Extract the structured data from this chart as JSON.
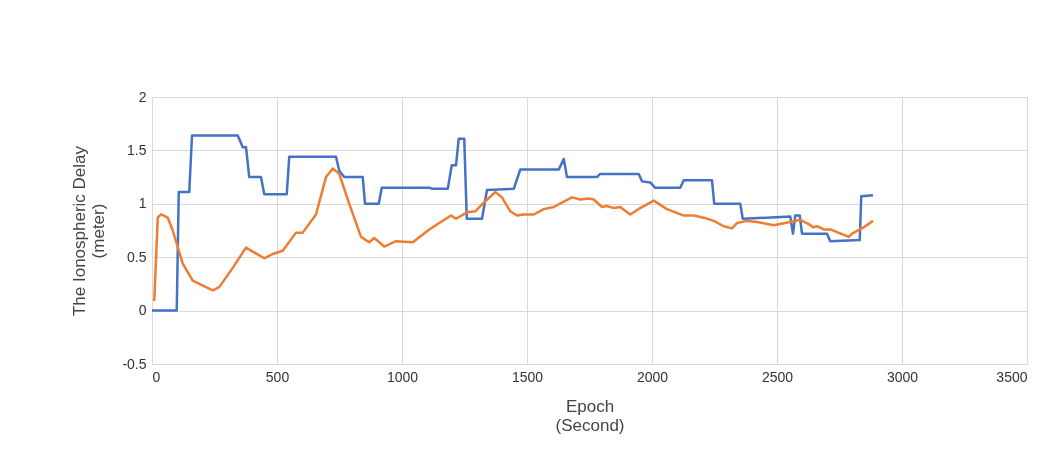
{
  "chart_data": {
    "type": "line",
    "xlabel": "Epoch\n(Second)",
    "ylabel": "The Ionospheric Delay\n(meter)",
    "xlim": [
      0,
      3500
    ],
    "xticks": [
      0,
      500,
      1000,
      1500,
      2000,
      2500,
      3000,
      3500
    ],
    "ylim": [
      -0.5,
      2
    ],
    "yticks": [
      -0.5,
      0,
      0.5,
      1,
      1.5,
      2
    ],
    "grid": true,
    "marker": "none",
    "line_style": "solid",
    "series": [
      {
        "color": "#4472c4",
        "x": [
          0,
          99,
          107,
          149,
          160,
          343,
          363,
          376,
          389,
          436,
          449,
          539,
          549,
          736,
          749,
          769,
          843,
          852,
          907,
          919,
          1109,
          1123,
          1183,
          1199,
          1216,
          1227,
          1249,
          1259,
          1320,
          1340,
          1447,
          1473,
          1627,
          1647,
          1660,
          1780,
          1793,
          1947,
          1960,
          1993,
          2013,
          2113,
          2127,
          2240,
          2249,
          2353,
          2363,
          2553,
          2564,
          2573,
          2591,
          2600,
          2700,
          2713,
          2831,
          2837,
          2884
        ],
        "values": [
          0,
          0,
          1.11,
          1.11,
          1.64,
          1.64,
          1.53,
          1.53,
          1.25,
          1.25,
          1.09,
          1.09,
          1.44,
          1.44,
          1.31,
          1.25,
          1.25,
          1.0,
          1.0,
          1.15,
          1.15,
          1.14,
          1.14,
          1.36,
          1.36,
          1.61,
          1.61,
          0.86,
          0.86,
          1.13,
          1.14,
          1.32,
          1.32,
          1.42,
          1.25,
          1.25,
          1.28,
          1.28,
          1.21,
          1.2,
          1.15,
          1.15,
          1.22,
          1.22,
          1.0,
          1.0,
          0.86,
          0.88,
          0.72,
          0.89,
          0.89,
          0.72,
          0.72,
          0.65,
          0.66,
          1.07,
          1.08
        ]
      },
      {
        "color": "#ed7d31",
        "x": [
          9,
          23,
          36,
          63,
          83,
          123,
          163,
          216,
          243,
          269,
          323,
          376,
          449,
          483,
          523,
          576,
          603,
          656,
          696,
          723,
          749,
          789,
          836,
          869,
          889,
          929,
          976,
          1043,
          1109,
          1149,
          1196,
          1216,
          1260,
          1293,
          1327,
          1373,
          1400,
          1433,
          1460,
          1487,
          1527,
          1567,
          1607,
          1647,
          1680,
          1713,
          1747,
          1767,
          1800,
          1820,
          1847,
          1873,
          1913,
          1953,
          2007,
          2060,
          2127,
          2167,
          2207,
          2247,
          2287,
          2320,
          2340,
          2380,
          2420,
          2487,
          2553,
          2593,
          2627,
          2644,
          2660,
          2687,
          2713,
          2787,
          2800,
          2847,
          2884
        ],
        "values": [
          0.09,
          0.87,
          0.9,
          0.87,
          0.75,
          0.44,
          0.28,
          0.22,
          0.19,
          0.22,
          0.4,
          0.59,
          0.49,
          0.53,
          0.56,
          0.73,
          0.73,
          0.9,
          1.25,
          1.33,
          1.28,
          1.0,
          0.69,
          0.64,
          0.68,
          0.6,
          0.65,
          0.64,
          0.76,
          0.82,
          0.89,
          0.86,
          0.92,
          0.93,
          1.01,
          1.11,
          1.06,
          0.93,
          0.89,
          0.9,
          0.9,
          0.95,
          0.97,
          1.02,
          1.06,
          1.04,
          1.05,
          1.04,
          0.97,
          0.98,
          0.96,
          0.97,
          0.9,
          0.96,
          1.03,
          0.95,
          0.89,
          0.89,
          0.87,
          0.84,
          0.79,
          0.77,
          0.82,
          0.84,
          0.83,
          0.8,
          0.83,
          0.85,
          0.81,
          0.78,
          0.79,
          0.76,
          0.76,
          0.69,
          0.72,
          0.78,
          0.84
        ]
      }
    ]
  }
}
